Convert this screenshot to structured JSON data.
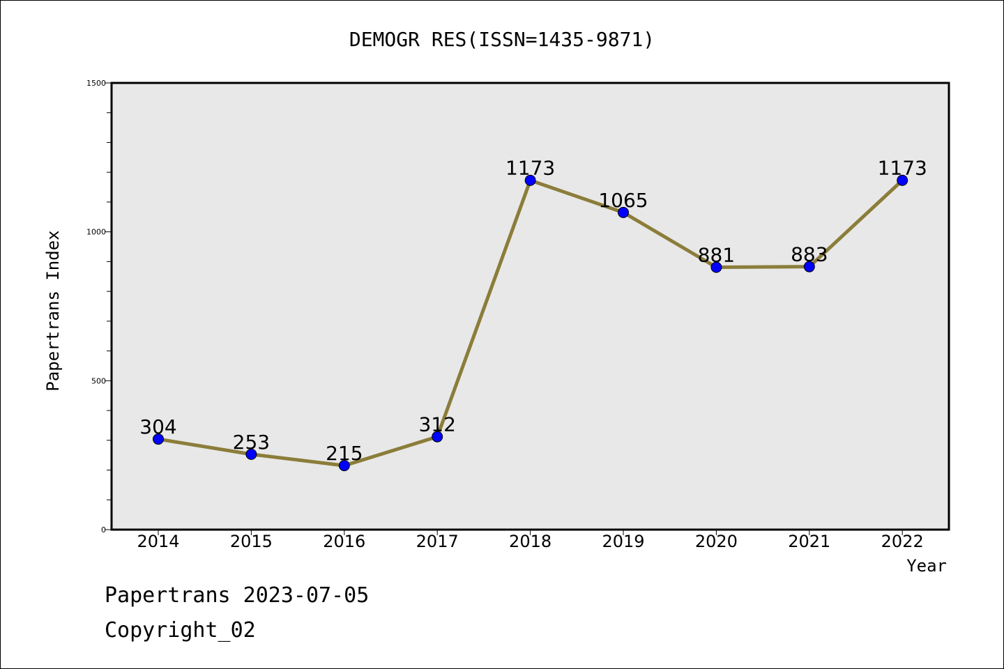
{
  "chart_data": {
    "type": "line",
    "title": "DEMOGR RES(ISSN=1435-9871)",
    "xlabel": "Year",
    "ylabel": "Papertrans Index",
    "categories": [
      "2014",
      "2015",
      "2016",
      "2017",
      "2018",
      "2019",
      "2020",
      "2021",
      "2022"
    ],
    "values": [
      304,
      253,
      215,
      312,
      1173,
      1065,
      881,
      883,
      1173
    ],
    "value_labels": [
      "304",
      "253",
      "215",
      "312",
      "1173",
      "1065",
      "881",
      "883",
      "1173"
    ],
    "ylim": [
      0,
      1500
    ],
    "yticks": [
      0,
      500,
      1000,
      1500
    ],
    "ytick_labels": [
      "0",
      "500",
      "1000",
      "1500"
    ],
    "grid": false,
    "line_color": "#8b7d3a",
    "marker_color": "#0000ff",
    "plot_background": "#e8e8e8"
  },
  "footer": {
    "line1": "Papertrans 2023-07-05",
    "line2": "Copyright_02"
  }
}
